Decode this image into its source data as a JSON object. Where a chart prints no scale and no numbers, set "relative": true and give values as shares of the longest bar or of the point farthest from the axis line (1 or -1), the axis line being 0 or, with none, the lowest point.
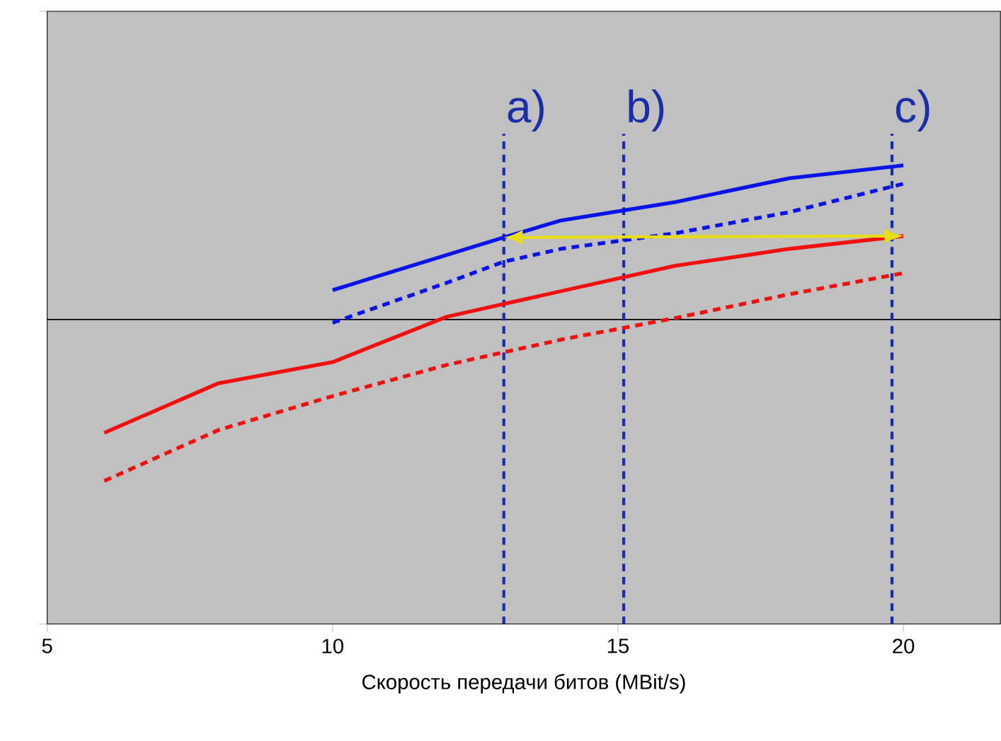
{
  "chart_data": {
    "type": "line",
    "xlabel": "Скорость передачи битов (MBit/s)",
    "relative": true,
    "tick_labels": "x",
    "xlim": [
      5,
      21.7
    ],
    "xticks": [
      5,
      10,
      15,
      20
    ],
    "series": [
      {
        "color": "#0a14e6",
        "line_style": "solid",
        "x": [
          10,
          13,
          14,
          16,
          18,
          20
        ],
        "values": [
          0.728,
          0.843,
          0.88,
          0.92,
          0.972,
          1
        ]
      },
      {
        "color": "#0a14e6",
        "line_style": "dashed",
        "x": [
          10,
          12,
          13,
          14,
          16,
          18,
          20
        ],
        "values": [
          0.657,
          0.744,
          0.79,
          0.818,
          0.852,
          0.898,
          0.96
        ]
      },
      {
        "color": "#f01010",
        "line_style": "solid",
        "x": [
          6,
          8,
          10,
          12,
          13,
          16,
          18,
          20
        ],
        "values": [
          0.417,
          0.525,
          0.571,
          0.67,
          0.698,
          0.781,
          0.818,
          0.846
        ]
      },
      {
        "color": "#f01010",
        "line_style": "dashed",
        "x": [
          6,
          8,
          10,
          12,
          14,
          16,
          18,
          20
        ],
        "values": [
          0.312,
          0.423,
          0.497,
          0.565,
          0.62,
          0.667,
          0.719,
          0.765
        ]
      }
    ],
    "ref_lines": [
      {
        "axis": "y",
        "value": 0.664,
        "color": "#000000",
        "line_style": "solid"
      },
      {
        "axis": "x",
        "value": 13,
        "label": "a)",
        "color": "#1a2ea8",
        "line_style": "dashed"
      },
      {
        "axis": "x",
        "value": 15.1,
        "label": "b)",
        "color": "#1a2ea8",
        "line_style": "dashed"
      },
      {
        "axis": "x",
        "value": 19.8,
        "label": "c)",
        "color": "#1a2ea8",
        "line_style": "dashed"
      }
    ]
  }
}
